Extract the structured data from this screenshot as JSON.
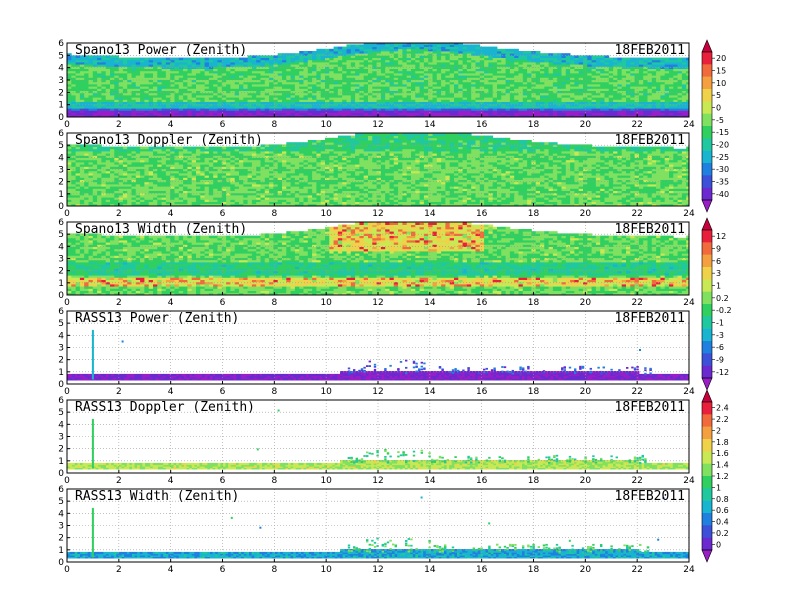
{
  "chart_data": [
    {
      "type": "heatmap",
      "title": "Spano13 Power (Zenith)",
      "date": "18FEB2011",
      "x": [
        0,
        2,
        4,
        6,
        8,
        10,
        12,
        14,
        16,
        18,
        20,
        22,
        24
      ],
      "xlim": [
        0,
        24
      ],
      "y": [
        0,
        1,
        2,
        3,
        4,
        5,
        6
      ],
      "ylim": [
        0,
        6
      ],
      "grid": true,
      "colorbar": {
        "ticks": [
          "20",
          "15",
          "10",
          "5",
          "0",
          "-5",
          "-15",
          "-20",
          "-25",
          "-30",
          "-35",
          "-40"
        ],
        "colors": [
          "#c8003c",
          "#e8203c",
          "#f06a3c",
          "#f4a040",
          "#f0d24a",
          "#c8e854",
          "#80e060",
          "#30d060",
          "#20c8a0",
          "#18b4d0",
          "#2080e0",
          "#3c50d8",
          "#6a2ad0",
          "#9a1ec8"
        ]
      }
    },
    {
      "type": "heatmap",
      "title": "Spano13 Doppler (Zenith)",
      "date": "18FEB2011",
      "x": [
        0,
        2,
        4,
        6,
        8,
        10,
        12,
        14,
        16,
        18,
        20,
        22,
        24
      ],
      "xlim": [
        0,
        24
      ],
      "y": [
        0,
        1,
        2,
        3,
        4,
        5,
        6
      ],
      "ylim": [
        0,
        6
      ],
      "grid": true
    },
    {
      "type": "heatmap",
      "title": "Spano13 Width (Zenith)",
      "date": "18FEB2011",
      "x": [
        0,
        2,
        4,
        6,
        8,
        10,
        12,
        14,
        16,
        18,
        20,
        22,
        24
      ],
      "xlim": [
        0,
        24
      ],
      "y": [
        0,
        1,
        2,
        3,
        4,
        5,
        6
      ],
      "ylim": [
        0,
        6
      ],
      "grid": true,
      "colorbar": {
        "ticks": [
          "12",
          "9",
          "6",
          "3",
          "1",
          "0.2",
          "-0.2",
          "-1",
          "-3",
          "-6",
          "-9",
          "-12"
        ],
        "colors": [
          "#c8003c",
          "#e8203c",
          "#f06a3c",
          "#f4a040",
          "#f0d24a",
          "#c8e854",
          "#80e060",
          "#30d060",
          "#20c8a0",
          "#18b4d0",
          "#2080e0",
          "#3c50d8",
          "#6a2ad0",
          "#9a1ec8"
        ]
      }
    },
    {
      "type": "heatmap",
      "title": "RASS13 Power (Zenith)",
      "date": "18FEB2011",
      "x": [
        0,
        2,
        4,
        6,
        8,
        10,
        12,
        14,
        16,
        18,
        20,
        22,
        24
      ],
      "xlim": [
        0,
        24
      ],
      "y": [
        0,
        1,
        2,
        3,
        4,
        5,
        6
      ],
      "ylim": [
        0,
        6
      ],
      "grid": true
    },
    {
      "type": "heatmap",
      "title": "RASS13 Doppler (Zenith)",
      "date": "18FEB2011",
      "x": [
        0,
        2,
        4,
        6,
        8,
        10,
        12,
        14,
        16,
        18,
        20,
        22,
        24
      ],
      "xlim": [
        0,
        24
      ],
      "y": [
        0,
        1,
        2,
        3,
        4,
        5,
        6
      ],
      "ylim": [
        0,
        6
      ],
      "grid": true,
      "colorbar": {
        "ticks": [
          "2.4",
          "2.2",
          "2",
          "1.8",
          "1.6",
          "1.4",
          "1.2",
          "1",
          "0.8",
          "0.6",
          "0.4",
          "0.2",
          "0"
        ],
        "colors": [
          "#c8003c",
          "#e8203c",
          "#f06a3c",
          "#f4a040",
          "#f0d24a",
          "#c8e854",
          "#80e060",
          "#30d060",
          "#20c8a0",
          "#18b4d0",
          "#2080e0",
          "#3c50d8",
          "#6a2ad0",
          "#9a1ec8"
        ]
      }
    },
    {
      "type": "heatmap",
      "title": "RASS13 Width (Zenith)",
      "date": "18FEB2011",
      "x": [
        0,
        2,
        4,
        6,
        8,
        10,
        12,
        14,
        16,
        18,
        20,
        22,
        24
      ],
      "xlim": [
        0,
        24
      ],
      "y": [
        0,
        1,
        2,
        3,
        4,
        5,
        6
      ],
      "ylim": [
        0,
        6
      ],
      "grid": true
    }
  ]
}
